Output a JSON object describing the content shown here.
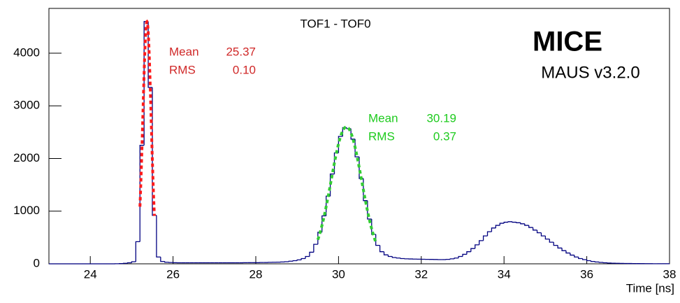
{
  "chart_data": {
    "type": "histogram",
    "title": "TOF1 - TOF0",
    "experiment": "MICE",
    "software": "MAUS v3.2.0",
    "x_label": "Time [ns]",
    "color": "#000080",
    "xlim": [
      23,
      38
    ],
    "ylim": [
      0,
      4850
    ],
    "xticks": [
      24,
      26,
      28,
      30,
      32,
      34,
      36,
      38
    ],
    "yticks": [
      0,
      1000,
      2000,
      3000,
      4000
    ],
    "bins": [
      23,
      23.1,
      23.2,
      23.3,
      23.4,
      23.5,
      23.6,
      23.7,
      23.8,
      23.9,
      24,
      24.1,
      24.2,
      24.3,
      24.4,
      24.5,
      24.6,
      24.7,
      24.8,
      24.9,
      25,
      25.1,
      25.2,
      25.3,
      25.4,
      25.5,
      25.6,
      25.7,
      25.8,
      25.9,
      26,
      26.1,
      26.2,
      26.3,
      26.4,
      26.5,
      26.6,
      26.7,
      26.8,
      26.9,
      27,
      27.1,
      27.2,
      27.3,
      27.4,
      27.5,
      27.6,
      27.7,
      27.8,
      27.9,
      28,
      28.1,
      28.2,
      28.3,
      28.4,
      28.5,
      28.6,
      28.7,
      28.8,
      28.9,
      29,
      29.1,
      29.2,
      29.3,
      29.4,
      29.5,
      29.6,
      29.7,
      29.8,
      29.9,
      30,
      30.1,
      30.2,
      30.3,
      30.4,
      30.5,
      30.6,
      30.7,
      30.8,
      30.9,
      31,
      31.1,
      31.2,
      31.3,
      31.4,
      31.5,
      31.6,
      31.7,
      31.8,
      31.9,
      32,
      32.1,
      32.2,
      32.3,
      32.4,
      32.5,
      32.6,
      32.7,
      32.8,
      32.9,
      33,
      33.1,
      33.2,
      33.3,
      33.4,
      33.5,
      33.6,
      33.7,
      33.8,
      33.9,
      34,
      34.1,
      34.2,
      34.3,
      34.4,
      34.5,
      34.6,
      34.7,
      34.8,
      34.9,
      35,
      35.1,
      35.2,
      35.3,
      35.4,
      35.5,
      35.6,
      35.7,
      35.8,
      35.9,
      36,
      36.1,
      36.2,
      36.3,
      36.4,
      36.5,
      36.6,
      36.7,
      36.8,
      36.9,
      37,
      37.1,
      37.2,
      37.3,
      37.4,
      37.5,
      37.6,
      37.7,
      37.8,
      37.9,
      38
    ],
    "values": [
      0,
      0,
      0,
      0,
      0,
      0,
      0,
      0,
      0,
      0,
      0,
      0,
      0,
      0,
      0,
      0,
      2,
      5,
      10,
      20,
      40,
      420,
      2250,
      4600,
      3350,
      920,
      130,
      45,
      30,
      25,
      22,
      20,
      20,
      20,
      20,
      20,
      20,
      20,
      20,
      20,
      20,
      20,
      20,
      20,
      20,
      20,
      20,
      22,
      22,
      22,
      22,
      25,
      25,
      28,
      30,
      32,
      35,
      40,
      50,
      60,
      75,
      100,
      140,
      220,
      370,
      600,
      910,
      1285,
      1705,
      2106,
      2420,
      2585,
      2566,
      2368,
      2031,
      1620,
      1200,
      850,
      560,
      350,
      230,
      170,
      140,
      120,
      110,
      100,
      95,
      92,
      90,
      88,
      86,
      85,
      84,
      82,
      80,
      80,
      85,
      95,
      110,
      140,
      180,
      230,
      290,
      360,
      440,
      530,
      610,
      680,
      730,
      770,
      790,
      800,
      790,
      780,
      760,
      730,
      690,
      640,
      590,
      530,
      470,
      410,
      350,
      300,
      250,
      205,
      165,
      130,
      100,
      80,
      60,
      45,
      35,
      27,
      20,
      15,
      12,
      10,
      8,
      7,
      6,
      5,
      4,
      4,
      3,
      3,
      2,
      2,
      2,
      2
    ],
    "fits": [
      {
        "color": "#d02828",
        "line_color": "#ff1a1a",
        "amplitude": 4600,
        "range": [
          25.2,
          25.55
        ],
        "stats": [
          {
            "name": "Mean",
            "value": 25.37
          },
          {
            "name": "RMS",
            "value": 0.1,
            "label": "0.10"
          }
        ]
      },
      {
        "color": "#1ecb1e",
        "line_color": "#33cc33",
        "amplitude": 2600,
        "range": [
          29.5,
          30.9
        ],
        "stats": [
          {
            "name": "Mean",
            "value": 30.19
          },
          {
            "name": "RMS",
            "value": 0.37
          }
        ]
      }
    ]
  }
}
